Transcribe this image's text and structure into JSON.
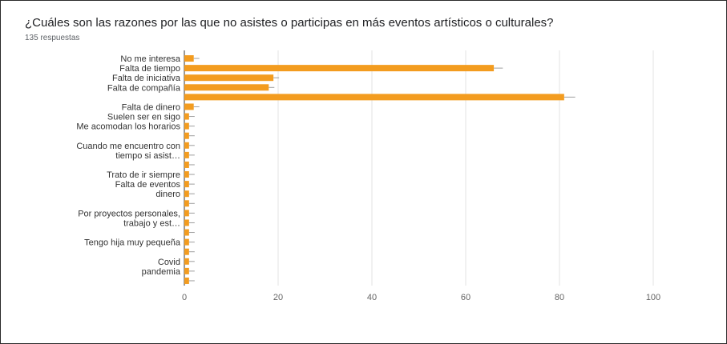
{
  "title": "¿Cuáles son las razones por las que no asistes o participas en más eventos artísticos o culturales?",
  "subtitle": "135 respuestas",
  "colors": {
    "bar": "#f39c1f",
    "grid": "#e3e3e3",
    "axis": "#333333"
  },
  "chart_data": {
    "type": "bar",
    "orientation": "horizontal",
    "categories": [
      "No me interesa",
      "Falta de tiempo",
      "Falta de iniciativa",
      "Falta de compañía",
      "",
      "Falta de dinero",
      "Suelen ser en sigo",
      "Me acomodan los horarios",
      "",
      "Cuando me encuentro con",
      "tiempo si asist…",
      "",
      "Trato de ir siempre",
      "Falta de eventos",
      "dinero",
      "",
      "Por proyectos personales,",
      "trabajo y est…",
      "",
      "Tengo hija muy pequeña",
      "",
      "Covid",
      "pandemia",
      ""
    ],
    "values": [
      2,
      66,
      19,
      18,
      81,
      2,
      1,
      1,
      1,
      1,
      1,
      1,
      1,
      1,
      1,
      1,
      1,
      1,
      1,
      1,
      1,
      1,
      1,
      1
    ],
    "xlim": [
      0,
      100
    ],
    "xticks": [
      0,
      20,
      40,
      60,
      80,
      100
    ],
    "grid": true,
    "legend": "none"
  }
}
